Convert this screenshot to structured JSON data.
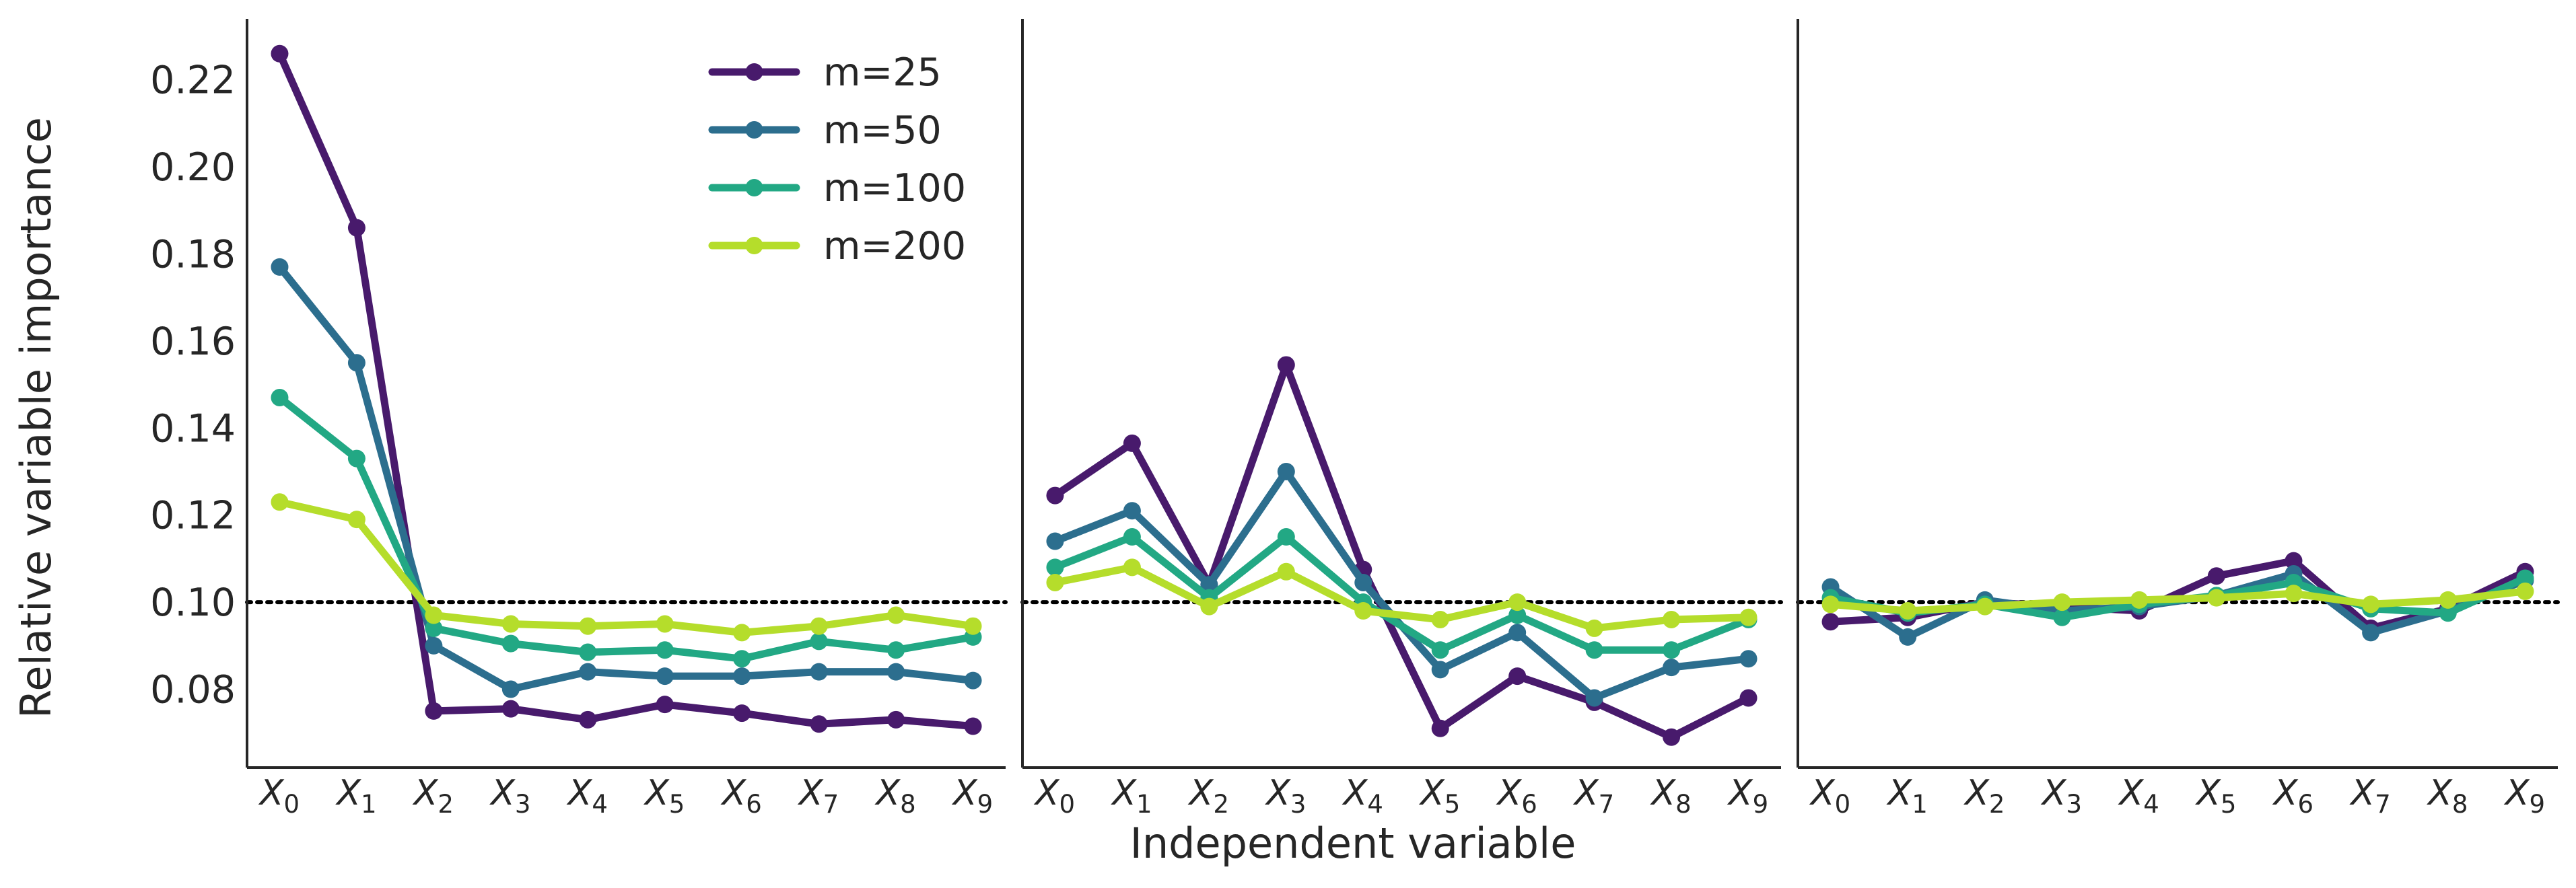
{
  "chart_data": {
    "type": "line",
    "ylabel": "Relative variable importance",
    "xlabel": "Independent variable",
    "ylim": [
      0.062,
      0.234
    ],
    "yticks": [
      0.08,
      0.1,
      0.12,
      0.14,
      0.16,
      0.18,
      0.2,
      0.22
    ],
    "reference_line": 0.1,
    "grid": false,
    "legend_placement": "top-center of first panel",
    "colors": {
      "m=25": "#481a6c",
      "m=50": "#2c6e8e",
      "m=100": "#22a884",
      "m=200": "#b5dd2b",
      "axes": "#262626",
      "reference": "#000000"
    },
    "x_categories": [
      {
        "base": "X",
        "sub": "0"
      },
      {
        "base": "X",
        "sub": "1"
      },
      {
        "base": "X",
        "sub": "2"
      },
      {
        "base": "X",
        "sub": "3"
      },
      {
        "base": "X",
        "sub": "4"
      },
      {
        "base": "X",
        "sub": "5"
      },
      {
        "base": "X",
        "sub": "6"
      },
      {
        "base": "X",
        "sub": "7"
      },
      {
        "base": "X",
        "sub": "8"
      },
      {
        "base": "X",
        "sub": "9"
      }
    ],
    "legend": [
      "m=25",
      "m=50",
      "m=100",
      "m=200"
    ],
    "panels": [
      {
        "series": [
          {
            "name": "m=25",
            "values": [
              0.226,
              0.186,
              0.075,
              0.0755,
              0.073,
              0.0765,
              0.0745,
              0.072,
              0.073,
              0.0715
            ]
          },
          {
            "name": "m=50",
            "values": [
              0.177,
              0.155,
              0.09,
              0.08,
              0.084,
              0.083,
              0.083,
              0.084,
              0.084,
              0.082
            ]
          },
          {
            "name": "m=100",
            "values": [
              0.147,
              0.133,
              0.094,
              0.0905,
              0.0885,
              0.089,
              0.087,
              0.091,
              0.089,
              0.092
            ]
          },
          {
            "name": "m=200",
            "values": [
              0.123,
              0.119,
              0.097,
              0.095,
              0.0945,
              0.095,
              0.093,
              0.0945,
              0.097,
              0.0945
            ]
          }
        ]
      },
      {
        "series": [
          {
            "name": "m=25",
            "values": [
              0.1245,
              0.1365,
              0.104,
              0.1545,
              0.1075,
              0.071,
              0.083,
              0.077,
              0.069,
              0.078
            ]
          },
          {
            "name": "m=50",
            "values": [
              0.114,
              0.121,
              0.104,
              0.13,
              0.1045,
              0.0845,
              0.093,
              0.078,
              0.085,
              0.087
            ]
          },
          {
            "name": "m=100",
            "values": [
              0.108,
              0.115,
              0.101,
              0.115,
              0.1,
              0.089,
              0.097,
              0.089,
              0.089,
              0.096
            ]
          },
          {
            "name": "m=200",
            "values": [
              0.1045,
              0.108,
              0.099,
              0.107,
              0.098,
              0.096,
              0.1,
              0.094,
              0.096,
              0.0965
            ]
          }
        ]
      },
      {
        "series": [
          {
            "name": "m=25",
            "values": [
              0.0955,
              0.0965,
              0.1,
              0.099,
              0.098,
              0.106,
              0.1095,
              0.094,
              0.0985,
              0.107
            ]
          },
          {
            "name": "m=50",
            "values": [
              0.1035,
              0.092,
              0.1005,
              0.098,
              0.099,
              0.1015,
              0.1065,
              0.093,
              0.098,
              0.105
            ]
          },
          {
            "name": "m=100",
            "values": [
              0.101,
              0.0975,
              0.0995,
              0.0965,
              0.0995,
              0.1015,
              0.1045,
              0.0985,
              0.0975,
              0.1055
            ]
          },
          {
            "name": "m=200",
            "values": [
              0.0995,
              0.098,
              0.099,
              0.1,
              0.1005,
              0.101,
              0.102,
              0.0995,
              0.1005,
              0.1025
            ]
          }
        ]
      }
    ]
  }
}
